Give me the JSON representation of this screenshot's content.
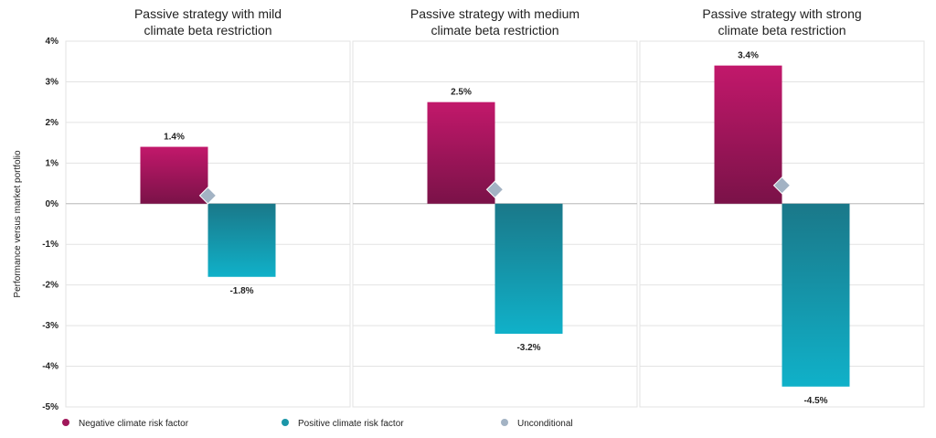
{
  "chart_data": {
    "type": "bar",
    "ylabel": "Performance versus market portfolio",
    "ylim": [
      -5,
      4
    ],
    "yticks": [
      4,
      3,
      2,
      1,
      0,
      -1,
      -2,
      -3,
      -4,
      -5
    ],
    "ytick_labels": [
      "4%",
      "3%",
      "2%",
      "1%",
      "0%",
      "-1%",
      "-2%",
      "-3%",
      "-4%",
      "-5%"
    ],
    "grid": true,
    "legend_position": "bottom-left",
    "panels": [
      {
        "title_lines": [
          "Passive strategy with mild",
          "climate beta restriction"
        ],
        "negative": 1.4,
        "negative_label": "1.4%",
        "positive": -1.8,
        "positive_label": "-1.8%",
        "unconditional": 0.2
      },
      {
        "title_lines": [
          "Passive strategy with medium",
          "climate beta restriction"
        ],
        "negative": 2.5,
        "negative_label": "2.5%",
        "positive": -3.2,
        "positive_label": "-3.2%",
        "unconditional": 0.35
      },
      {
        "title_lines": [
          "Passive strategy with strong",
          "climate beta restriction"
        ],
        "negative": 3.4,
        "negative_label": "3.4%",
        "positive": -4.5,
        "positive_label": "-4.5%",
        "unconditional": 0.45
      }
    ],
    "series": [
      {
        "key": "negative",
        "name": "Negative climate risk factor",
        "color": "#a0175a"
      },
      {
        "key": "positive",
        "name": "Positive climate risk factor",
        "color": "#1b96a8"
      },
      {
        "key": "unconditional",
        "name": "Unconditional",
        "color": "#a3b3c4"
      }
    ]
  }
}
